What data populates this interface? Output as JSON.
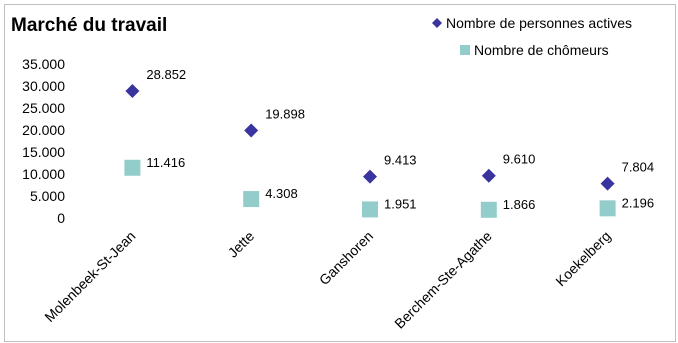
{
  "chart_data": {
    "type": "scatter",
    "title": "Marché du travail",
    "categories": [
      "Molenbeek-St-Jean",
      "Jette",
      "Ganshoren",
      "Berchem-Ste-Agathe",
      "Koekelberg"
    ],
    "series": [
      {
        "name": "Nombre de personnes actives",
        "marker": "diamond",
        "color": "#3A349E",
        "values": [
          28852,
          19898,
          9413,
          9610,
          7804
        ],
        "labels": [
          "28.852",
          "19.898",
          "9.413",
          "9.610",
          "7.804"
        ]
      },
      {
        "name": "Nombre de chômeurs",
        "marker": "square",
        "color": "#93CDCB",
        "values": [
          11416,
          4308,
          1951,
          1866,
          2196
        ],
        "labels": [
          "11.416",
          "4.308",
          "1.951",
          "1.866",
          "2.196"
        ]
      }
    ],
    "ylim": [
      0,
      35000
    ],
    "yticks": [
      "35.000",
      "30.000",
      "25.000",
      "20.000",
      "15.000",
      "10.000",
      "5.000",
      "0"
    ],
    "xlabel": "",
    "ylabel": "",
    "grid": false,
    "legend_position": "top-right"
  }
}
